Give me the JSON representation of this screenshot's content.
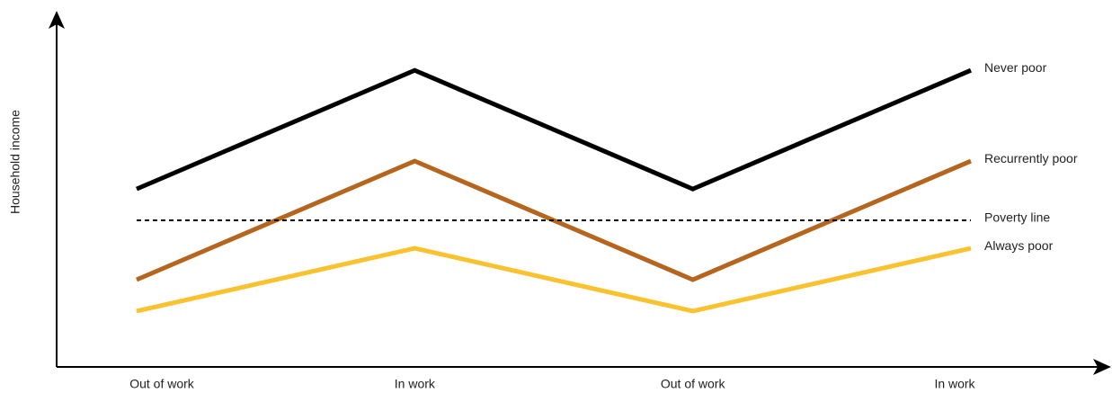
{
  "chart_data": {
    "type": "line",
    "y_label": "Household income",
    "categories": [
      "Out of work",
      "In work",
      "Out of work",
      "In work"
    ],
    "ylim": [
      0,
      100
    ],
    "series": [
      {
        "name": "Never poor",
        "color": "#000000",
        "values": [
          51,
          85,
          51,
          85
        ]
      },
      {
        "name": "Recurrently poor",
        "color": "#b5651d",
        "values": [
          25,
          59,
          25,
          59
        ]
      },
      {
        "name": "Poverty line",
        "color": "#000000",
        "dashed": true,
        "values": [
          42,
          42,
          42,
          42
        ]
      },
      {
        "name": "Always poor",
        "color": "#f9c22e",
        "values": [
          16,
          34,
          16,
          34
        ]
      }
    ]
  }
}
